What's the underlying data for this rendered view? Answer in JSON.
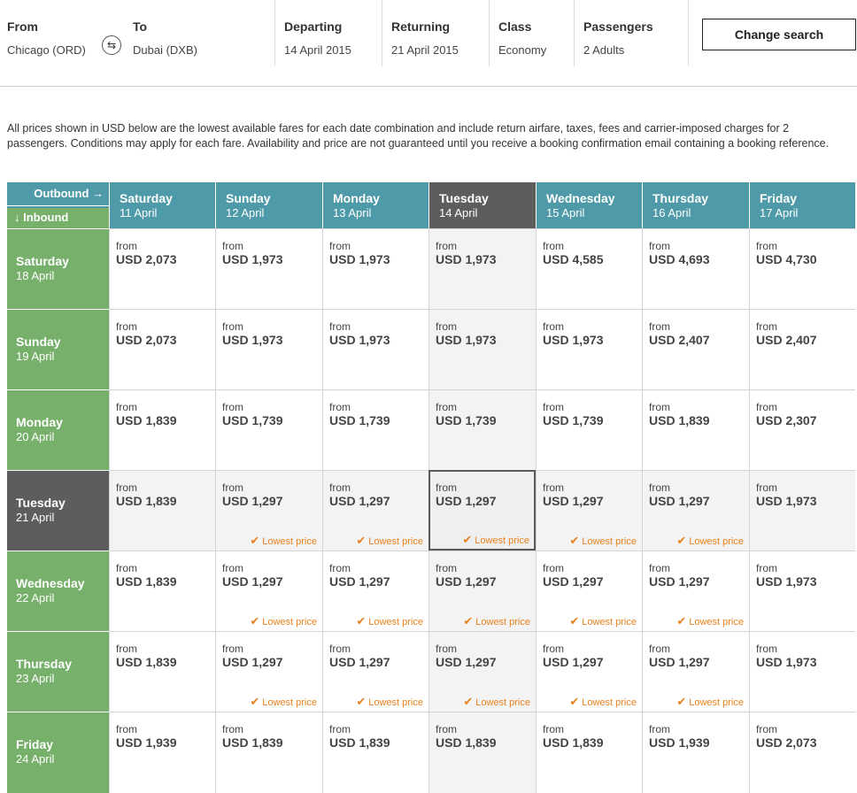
{
  "search": {
    "from_label": "From",
    "from_value": "Chicago (ORD)",
    "to_label": "To",
    "to_value": "Dubai (DXB)",
    "swap_icon": "swap-arrows-icon",
    "departing_label": "Departing",
    "departing_value": "14 April 2015",
    "returning_label": "Returning",
    "returning_value": "21 April 2015",
    "class_label": "Class",
    "class_value": "Economy",
    "passengers_label": "Passengers",
    "passengers_value": "2 Adults",
    "change_button": "Change search"
  },
  "disclaimer": "All prices shown in USD below are the lowest available fares for each date combination and include return airfare, taxes, fees and carrier-imposed charges for 2 passengers. Conditions may apply for each fare. Availability and price are not guaranteed until you receive a booking confirmation email containing a booking reference.",
  "grid": {
    "outbound_label": "Outbound →",
    "inbound_label": "↓ Inbound",
    "from_text": "from",
    "lowest_text": "Lowest price",
    "colors": {
      "outbound_header": "#4f9aa8",
      "inbound_header": "#77b06a",
      "selected_header": "#5d5d5d",
      "lowest_price": "#e8821e"
    },
    "outbound": [
      {
        "day": "Saturday",
        "date": "11 April"
      },
      {
        "day": "Sunday",
        "date": "12 April"
      },
      {
        "day": "Monday",
        "date": "13 April"
      },
      {
        "day": "Tuesday",
        "date": "14 April",
        "selected": true
      },
      {
        "day": "Wednesday",
        "date": "15 April"
      },
      {
        "day": "Thursday",
        "date": "16 April"
      },
      {
        "day": "Friday",
        "date": "17 April"
      }
    ],
    "inbound": [
      {
        "day": "Saturday",
        "date": "18 April"
      },
      {
        "day": "Sunday",
        "date": "19 April"
      },
      {
        "day": "Monday",
        "date": "20 April"
      },
      {
        "day": "Tuesday",
        "date": "21 April",
        "selected": true
      },
      {
        "day": "Wednesday",
        "date": "22 April"
      },
      {
        "day": "Thursday",
        "date": "23 April"
      },
      {
        "day": "Friday",
        "date": "24 April"
      }
    ],
    "prices": [
      [
        "USD 2,073",
        "USD 1,973",
        "USD 1,973",
        "USD 1,973",
        "USD 4,585",
        "USD 4,693",
        "USD 4,730"
      ],
      [
        "USD 2,073",
        "USD 1,973",
        "USD 1,973",
        "USD 1,973",
        "USD 1,973",
        "USD 2,407",
        "USD 2,407"
      ],
      [
        "USD 1,839",
        "USD 1,739",
        "USD 1,739",
        "USD 1,739",
        "USD 1,739",
        "USD 1,839",
        "USD 2,307"
      ],
      [
        "USD 1,839",
        "USD 1,297",
        "USD 1,297",
        "USD 1,297",
        "USD 1,297",
        "USD 1,297",
        "USD 1,973"
      ],
      [
        "USD 1,839",
        "USD 1,297",
        "USD 1,297",
        "USD 1,297",
        "USD 1,297",
        "USD 1,297",
        "USD 1,973"
      ],
      [
        "USD 1,839",
        "USD 1,297",
        "USD 1,297",
        "USD 1,297",
        "USD 1,297",
        "USD 1,297",
        "USD 1,973"
      ],
      [
        "USD 1,939",
        "USD 1,839",
        "USD 1,839",
        "USD 1,839",
        "USD 1,839",
        "USD 1,939",
        "USD 2,073"
      ]
    ],
    "lowest": [
      [
        false,
        false,
        false,
        false,
        false,
        false,
        false
      ],
      [
        false,
        false,
        false,
        false,
        false,
        false,
        false
      ],
      [
        false,
        false,
        false,
        false,
        false,
        false,
        false
      ],
      [
        false,
        true,
        true,
        true,
        true,
        true,
        false
      ],
      [
        false,
        true,
        true,
        true,
        true,
        true,
        false
      ],
      [
        false,
        true,
        true,
        true,
        true,
        true,
        false
      ],
      [
        false,
        false,
        false,
        false,
        false,
        false,
        false
      ]
    ]
  }
}
